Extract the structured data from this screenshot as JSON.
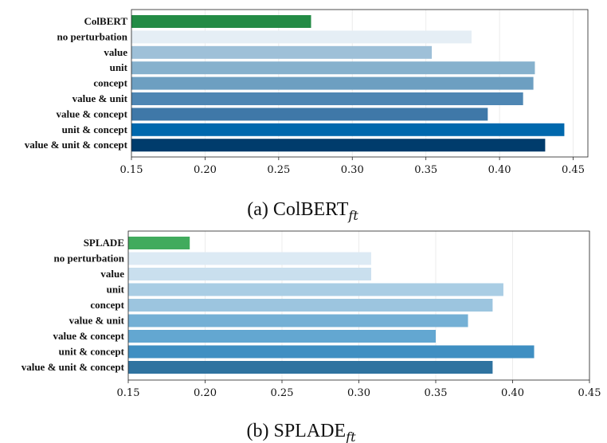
{
  "chart_data": [
    {
      "type": "bar",
      "orientation": "horizontal",
      "title": "",
      "caption_prefix": "(a) ColBERT",
      "caption_subscript": "ft",
      "xlabel": "",
      "ylabel": "",
      "xlim": [
        0.15,
        0.46
      ],
      "xticks": [
        "0.15",
        "0.20",
        "0.25",
        "0.30",
        "0.35",
        "0.40",
        "0.45"
      ],
      "xtick_values": [
        0.15,
        0.2,
        0.25,
        0.3,
        0.35,
        0.4,
        0.45
      ],
      "grid": "vertical",
      "categories": [
        "ColBERT",
        "no perturbation",
        "value",
        "unit",
        "concept",
        "value & unit",
        "value & concept",
        "unit & concept",
        "value & unit & concept"
      ],
      "values": [
        0.272,
        0.381,
        0.354,
        0.424,
        0.423,
        0.416,
        0.392,
        0.444,
        0.431
      ],
      "colors": [
        "#238b45",
        "#e5eef5",
        "#9ec0d8",
        "#86b1cd",
        "#6d9fc1",
        "#4e86b3",
        "#3f78a8",
        "#0068ad",
        "#003c6c"
      ]
    },
    {
      "type": "bar",
      "orientation": "horizontal",
      "title": "",
      "caption_prefix": "(b) SPLADE",
      "caption_subscript": "ft",
      "xlabel": "",
      "ylabel": "",
      "xlim": [
        0.15,
        0.45
      ],
      "xticks": [
        "0.15",
        "0.20",
        "0.25",
        "0.30",
        "0.35",
        "0.40",
        "0.45"
      ],
      "xtick_values": [
        0.15,
        0.2,
        0.25,
        0.3,
        0.35,
        0.4,
        0.45
      ],
      "grid": "vertical",
      "categories": [
        "SPLADE",
        "no perturbation",
        "value",
        "unit",
        "concept",
        "value & unit",
        "value & concept",
        "unit & concept",
        "value & unit & concept"
      ],
      "values": [
        0.19,
        0.308,
        0.308,
        0.394,
        0.387,
        0.371,
        0.35,
        0.414,
        0.387
      ],
      "colors": [
        "#41ab5d",
        "#dceaf4",
        "#c9dfee",
        "#a9cde4",
        "#9cc5df",
        "#74b0d5",
        "#63a7d1",
        "#3f8fc2",
        "#2f73a0"
      ]
    }
  ]
}
